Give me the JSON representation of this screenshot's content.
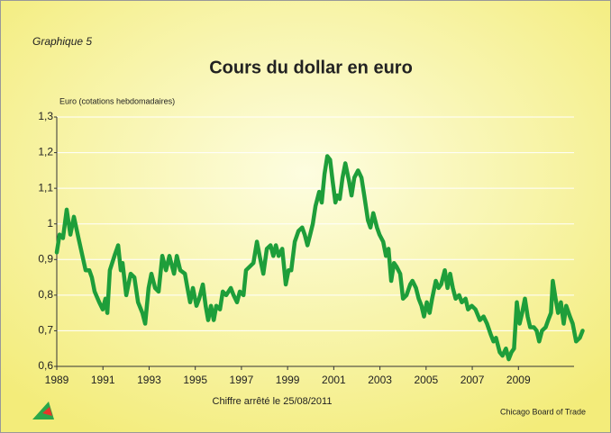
{
  "chart_data": {
    "type": "line",
    "label": "Graphique 5",
    "title": "Cours du dollar en euro",
    "y_label": "Euro (cotations hebdomadaires)",
    "note": "Chiffre arrêté le 25/08/2011",
    "source": "Chicago Board of Trade",
    "color": "#1e9e3a",
    "grid": true,
    "xlim": [
      1989,
      2011.8
    ],
    "xticks": [
      1989,
      1991,
      1993,
      1995,
      1997,
      1999,
      2001,
      2003,
      2005,
      2007,
      2009
    ],
    "ylim": [
      0.6,
      1.3
    ],
    "yticks": [
      {
        "value": 0.6,
        "label": "0,6"
      },
      {
        "value": 0.7,
        "label": "0,7"
      },
      {
        "value": 0.8,
        "label": "0,8"
      },
      {
        "value": 0.9,
        "label": "0,9"
      },
      1,
      {
        "value": 1.1,
        "label": "1,1"
      },
      {
        "value": 1.2,
        "label": "1,2"
      },
      {
        "value": 1.3,
        "label": "1,3"
      }
    ],
    "x": [
      1989.0,
      1989.12,
      1989.27,
      1989.43,
      1989.59,
      1989.74,
      1989.94,
      1990.25,
      1990.41,
      1990.52,
      1990.64,
      1990.84,
      1990.99,
      1991.11,
      1991.19,
      1991.3,
      1991.5,
      1991.66,
      1991.77,
      1991.85,
      1992.01,
      1992.2,
      1992.36,
      1992.52,
      1992.71,
      1992.83,
      1992.98,
      1993.1,
      1993.26,
      1993.41,
      1993.57,
      1993.73,
      1993.88,
      1994.08,
      1994.2,
      1994.35,
      1994.55,
      1994.66,
      1994.78,
      1994.9,
      1995.05,
      1995.17,
      1995.33,
      1995.45,
      1995.56,
      1995.68,
      1995.8,
      1995.91,
      1996.07,
      1996.19,
      1996.34,
      1996.54,
      1996.66,
      1996.81,
      1996.93,
      1997.09,
      1997.2,
      1997.36,
      1997.52,
      1997.67,
      1997.79,
      1997.95,
      1998.1,
      1998.26,
      1998.38,
      1998.49,
      1998.61,
      1998.77,
      1998.92,
      1999.04,
      1999.16,
      1999.31,
      1999.47,
      1999.63,
      1999.74,
      1999.86,
      1999.98,
      2000.09,
      2000.21,
      2000.37,
      2000.48,
      2000.6,
      2000.72,
      2000.84,
      2000.95,
      2001.07,
      2001.15,
      2001.26,
      2001.38,
      2001.5,
      2001.66,
      2001.77,
      2001.89,
      2002.05,
      2002.2,
      2002.32,
      2002.48,
      2002.59,
      2002.71,
      2002.87,
      2002.98,
      2003.14,
      2003.26,
      2003.37,
      2003.49,
      2003.61,
      2003.72,
      2003.88,
      2004.0,
      2004.15,
      2004.31,
      2004.41,
      2004.56,
      2004.68,
      2004.8,
      2004.91,
      2005.03,
      2005.15,
      2005.26,
      2005.42,
      2005.54,
      2005.65,
      2005.81,
      2005.93,
      2006.04,
      2006.16,
      2006.28,
      2006.43,
      2006.55,
      2006.71,
      2006.82,
      2006.98,
      2007.14,
      2007.33,
      2007.49,
      2007.64,
      2007.8,
      2007.92,
      2008.03,
      2008.19,
      2008.31,
      2008.46,
      2008.58,
      2008.7,
      2008.81,
      2008.93,
      2009.05,
      2009.16,
      2009.28,
      2009.4,
      2009.51,
      2009.67,
      2009.79,
      2009.9,
      2010.02,
      2010.18,
      2010.29,
      2010.41,
      2010.49,
      2010.61,
      2010.72,
      2010.84,
      2010.96,
      2011.07,
      2011.23,
      2011.35,
      2011.5,
      2011.66,
      2011.78
    ],
    "values": [
      0.92,
      0.97,
      0.96,
      1.04,
      0.97,
      1.02,
      0.96,
      0.87,
      0.87,
      0.85,
      0.81,
      0.78,
      0.76,
      0.79,
      0.75,
      0.87,
      0.91,
      0.94,
      0.87,
      0.89,
      0.8,
      0.86,
      0.85,
      0.78,
      0.75,
      0.72,
      0.82,
      0.86,
      0.82,
      0.81,
      0.91,
      0.87,
      0.91,
      0.86,
      0.91,
      0.87,
      0.86,
      0.82,
      0.78,
      0.82,
      0.77,
      0.79,
      0.83,
      0.77,
      0.73,
      0.77,
      0.73,
      0.77,
      0.76,
      0.81,
      0.8,
      0.82,
      0.8,
      0.78,
      0.81,
      0.8,
      0.87,
      0.88,
      0.89,
      0.95,
      0.91,
      0.86,
      0.93,
      0.94,
      0.91,
      0.94,
      0.91,
      0.93,
      0.83,
      0.87,
      0.87,
      0.95,
      0.98,
      0.99,
      0.97,
      0.94,
      0.97,
      1.0,
      1.05,
      1.09,
      1.06,
      1.14,
      1.19,
      1.18,
      1.12,
      1.06,
      1.08,
      1.07,
      1.13,
      1.17,
      1.12,
      1.08,
      1.13,
      1.15,
      1.13,
      1.08,
      1.01,
      0.99,
      1.03,
      0.99,
      0.97,
      0.95,
      0.91,
      0.93,
      0.84,
      0.89,
      0.88,
      0.86,
      0.79,
      0.8,
      0.83,
      0.84,
      0.82,
      0.79,
      0.77,
      0.74,
      0.78,
      0.75,
      0.79,
      0.84,
      0.82,
      0.83,
      0.87,
      0.82,
      0.86,
      0.82,
      0.79,
      0.8,
      0.78,
      0.79,
      0.76,
      0.77,
      0.76,
      0.73,
      0.74,
      0.72,
      0.69,
      0.67,
      0.68,
      0.64,
      0.63,
      0.65,
      0.62,
      0.64,
      0.65,
      0.78,
      0.72,
      0.75,
      0.79,
      0.74,
      0.71,
      0.71,
      0.7,
      0.67,
      0.7,
      0.71,
      0.73,
      0.75,
      0.84,
      0.79,
      0.75,
      0.78,
      0.72,
      0.77,
      0.74,
      0.72,
      0.67,
      0.68,
      0.7
    ]
  }
}
